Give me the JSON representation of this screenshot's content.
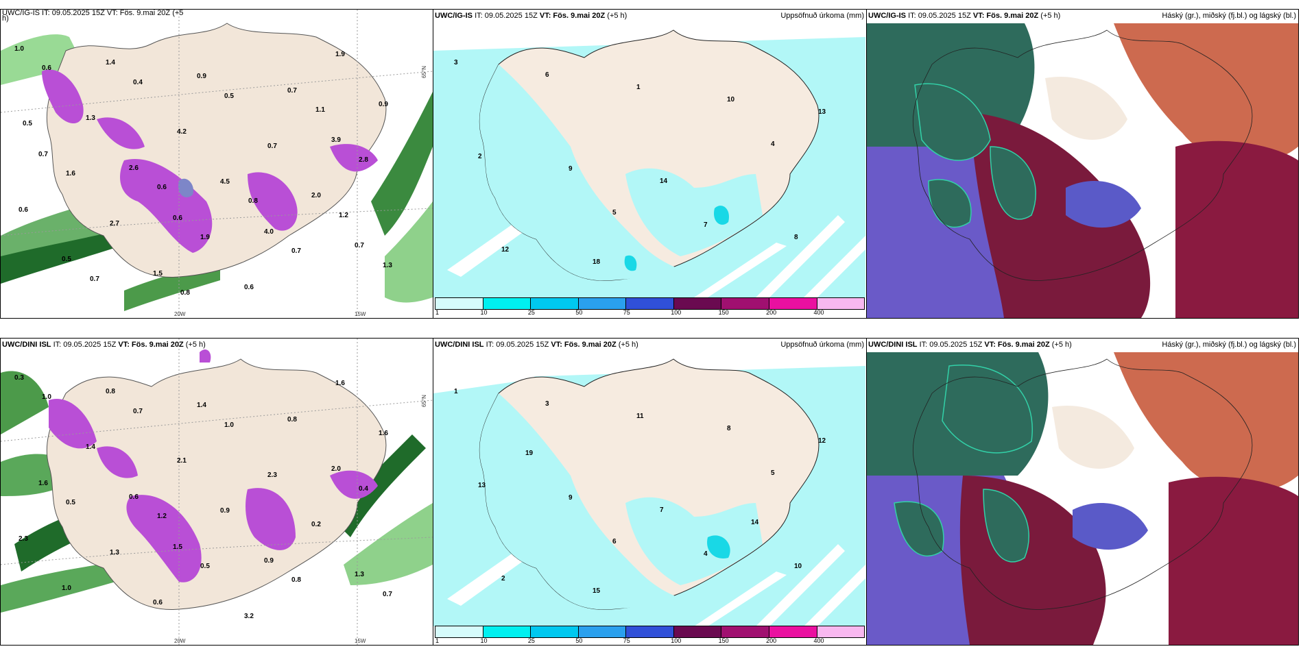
{
  "rows": [
    {
      "model": "UWC/IG-IS",
      "init": "IT: 09.05.2025 15Z",
      "vt_label": "VT:",
      "vt": "Fös. 9.mai 20Z",
      "lead": "(+5 h)",
      "panel1_title_cut": "UWC/IG-IS IT: 09.05.2025 15Z VT: Fös. 9.mai 20Z (+5",
      "panel1_title_cut2": "h)",
      "panel1_values": [
        "1.0",
        "0.6",
        "3.9",
        "1.4",
        "4.0",
        "0.7",
        "0.9",
        "0.7",
        "2.6",
        "0.7",
        "0.5",
        "4.5",
        "0.9",
        "1.5",
        "2.0",
        "1.3",
        "0.6",
        "0.6",
        "4.2",
        "1.9",
        "2.7",
        "0.7",
        "0.6",
        "1.9",
        "2.8",
        "0.4",
        "0.7",
        "1.6",
        "0.5",
        "1.3",
        "0.6",
        "1.1",
        "0.7",
        "0.8",
        "0.5",
        "0.8",
        "1.2"
      ],
      "panel2_values": [
        "3",
        "5",
        "4",
        "6",
        "7",
        "2",
        "1",
        "8",
        "9",
        "10",
        "12",
        "14",
        "13",
        "18"
      ]
    },
    {
      "model": "UWC/DINI ISL",
      "init": "IT: 09.05.2025 15Z",
      "vt_label": "VT:",
      "vt": "Fös. 9.mai 20Z",
      "lead": "(+5 h)",
      "panel1_values": [
        "0.3",
        "1.5",
        "2.0",
        "0.8",
        "0.9",
        "1.6",
        "1.4",
        "1.3",
        "0.6",
        "0.8",
        "1.0",
        "0.9",
        "1.6",
        "0.6",
        "0.2",
        "1.4",
        "3.2",
        "2.3",
        "2.1",
        "1.6",
        "1.3",
        "2.3",
        "1.0",
        "0.5",
        "0.4",
        "0.7",
        "0.8",
        "0.5",
        "1.0",
        "0.7",
        "1.2"
      ],
      "panel2_values": [
        "1",
        "6",
        "5",
        "3",
        "4",
        "13",
        "11",
        "10",
        "9",
        "8",
        "2",
        "7",
        "12",
        "15",
        "14",
        "19"
      ]
    }
  ],
  "precip_title": "Uppsöfnuð úrkoma (mm)",
  "cloud_title": "Háský (gr.), miðský (fj.bl.) og lágský (bl.)",
  "colorbar": {
    "ticks": [
      "1",
      "10",
      "25",
      "50",
      "75",
      "100",
      "150",
      "200",
      "400"
    ],
    "colors": [
      "#d6fbfb",
      "#00f0f0",
      "#00c8f0",
      "#2aa0ee",
      "#3050d8",
      "#6a0a50",
      "#a01070",
      "#ea10a0",
      "#f8b8f0"
    ]
  },
  "coords": {
    "lat": "65°N",
    "lon1": "20W",
    "lon2": "15W"
  },
  "colors": {
    "land": "#f2e6d9",
    "sea_precip": "#b2f7f7",
    "green": "#4caf50",
    "purple": "#b94fd6"
  }
}
